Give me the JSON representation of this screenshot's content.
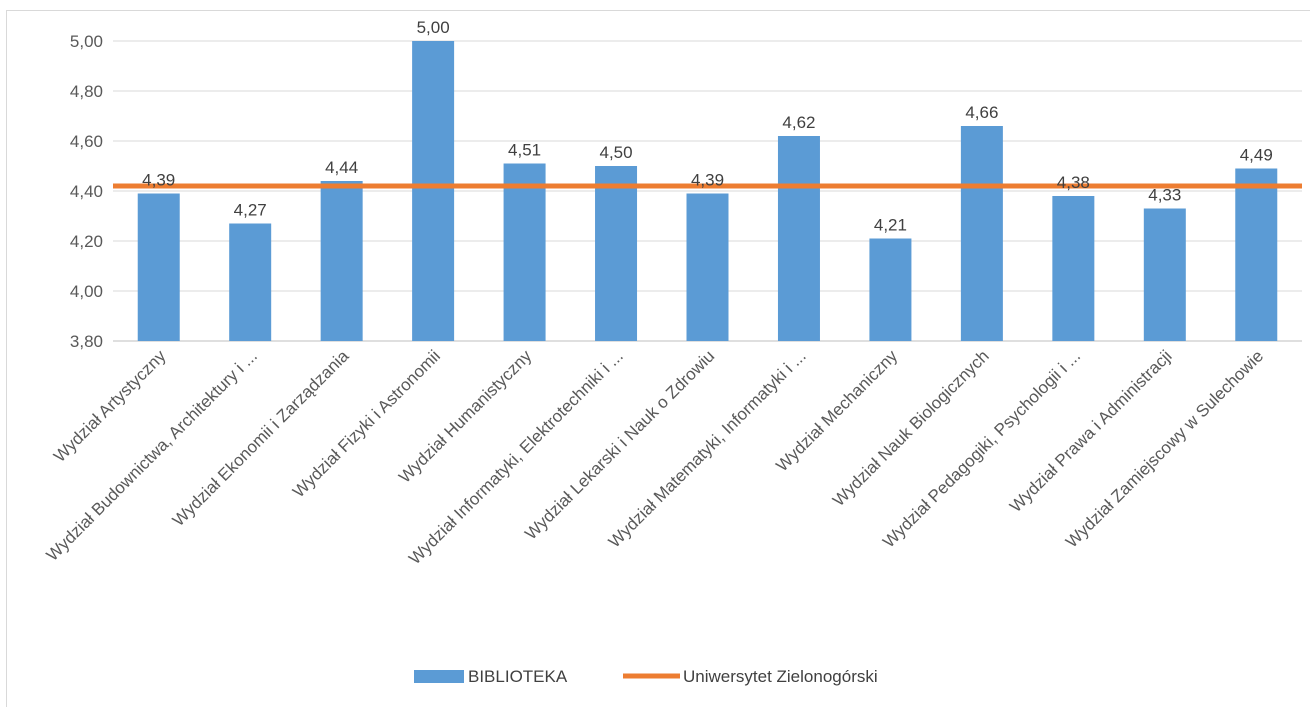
{
  "chart_data": {
    "type": "bar",
    "categories": [
      "Wydział Artystyczny",
      "Wydział Budownictwa, Architektury i ...",
      "Wydział Ekonomii i Zarządzania",
      "Wydział Fizyki i Astronomii",
      "Wydział Humanistyczny",
      "Wydział Informatyki, Elektrotechniki i ...",
      "Wydział Lekarski i Nauk o Zdrowiu",
      "Wydział Matematyki, Informatyki i ...",
      "Wydział Mechaniczny",
      "Wydział Nauk Biologicznych",
      "Wydział Pedagogiki, Psychologii i ...",
      "Wydział Prawa i Administracji",
      "Wydział Zamiejscowy w Sulechowie"
    ],
    "series": [
      {
        "name": "BIBLIOTEKA",
        "type": "bar",
        "color": "#5b9bd5",
        "values": [
          4.39,
          4.27,
          4.44,
          5.0,
          4.51,
          4.5,
          4.39,
          4.62,
          4.21,
          4.66,
          4.38,
          4.33,
          4.49
        ],
        "labels": [
          "4,39",
          "4,27",
          "4,44",
          "5,00",
          "4,51",
          "4,50",
          "4,39",
          "4,62",
          "4,21",
          "4,66",
          "4,38",
          "4,33",
          "4,49"
        ]
      },
      {
        "name": "Uniwersytet Zielonogórski",
        "type": "line",
        "color": "#ed7d31",
        "value": 4.42
      }
    ],
    "ylim": [
      3.8,
      5.0
    ],
    "yticks": [
      "3,80",
      "4,00",
      "4,20",
      "4,40",
      "4,60",
      "4,80",
      "5,00"
    ],
    "ytick_values": [
      3.8,
      4.0,
      4.2,
      4.4,
      4.6,
      4.8,
      5.0
    ],
    "grid": true,
    "legend_position": "bottom",
    "title": "",
    "xlabel": "",
    "ylabel": ""
  }
}
